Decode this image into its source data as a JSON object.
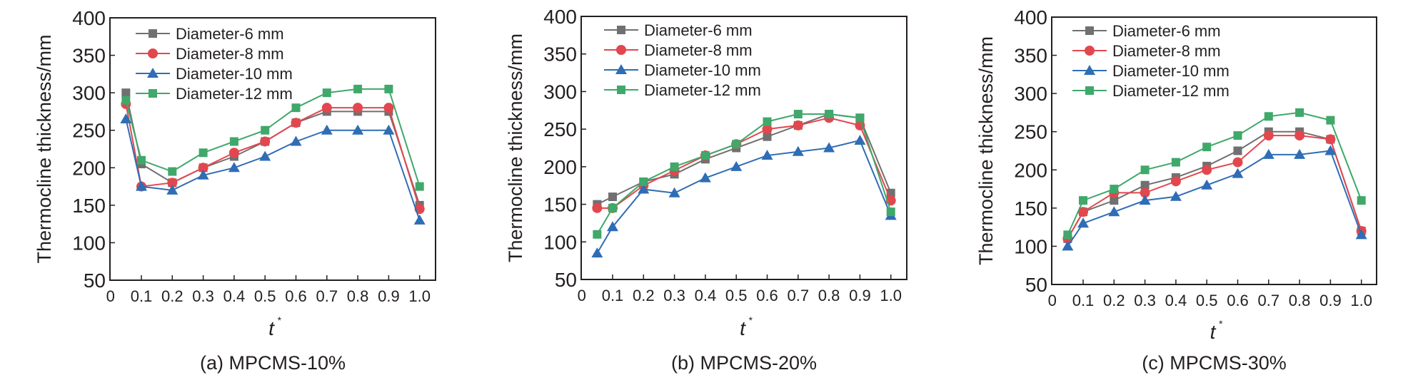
{
  "figure": {
    "panels_count": 3
  },
  "chart_data": [
    {
      "type": "line",
      "caption": "(a) MPCMS-10%",
      "xlabel": "t",
      "xlabel_superscript": "*",
      "ylabel": "Thermocline thickness/mm",
      "xlim": [
        0,
        1.05
      ],
      "ylim": [
        50,
        400
      ],
      "xticks": [
        0,
        0.1,
        0.2,
        0.3,
        0.4,
        0.5,
        0.6,
        0.7,
        0.8,
        0.9,
        1.0
      ],
      "xtick_labels": [
        "0",
        "0.1",
        "0.2",
        "0.3",
        "0.4",
        "0.5",
        "0.6",
        "0.7",
        "0.8",
        "0.9",
        "1.0"
      ],
      "yticks": [
        50,
        100,
        150,
        200,
        250,
        300,
        350,
        400
      ],
      "ytick_labels": [
        "50",
        "100",
        "150",
        "200",
        "250",
        "300",
        "350",
        "400"
      ],
      "grid": false,
      "legend_position": "top-left",
      "x": [
        0.05,
        0.1,
        0.2,
        0.3,
        0.4,
        0.5,
        0.6,
        0.7,
        0.8,
        0.9,
        1.0
      ],
      "series": [
        {
          "name": "Diameter-6 mm",
          "marker": "square",
          "color": "#707070",
          "values": [
            300,
            205,
            180,
            200,
            215,
            235,
            260,
            275,
            275,
            275,
            150
          ]
        },
        {
          "name": "Diameter-8 mm",
          "marker": "circle",
          "color": "#e2474e",
          "values": [
            285,
            175,
            180,
            200,
            220,
            235,
            260,
            280,
            280,
            280,
            145
          ]
        },
        {
          "name": "Diameter-10 mm",
          "marker": "triangle",
          "color": "#2f6db5",
          "values": [
            265,
            175,
            170,
            190,
            200,
            215,
            235,
            250,
            250,
            250,
            130
          ]
        },
        {
          "name": "Diameter-12 mm",
          "marker": "square",
          "color": "#3fa86a",
          "values": [
            290,
            210,
            195,
            220,
            235,
            250,
            280,
            300,
            305,
            305,
            175
          ]
        }
      ]
    },
    {
      "type": "line",
      "caption": "(b) MPCMS-20%",
      "xlabel": "t",
      "xlabel_superscript": "*",
      "ylabel": "Thermocline thickness/mm",
      "xlim": [
        0,
        1.05
      ],
      "ylim": [
        50,
        400
      ],
      "xticks": [
        0,
        0.1,
        0.2,
        0.3,
        0.4,
        0.5,
        0.6,
        0.7,
        0.8,
        0.9,
        1.0
      ],
      "xtick_labels": [
        "0",
        "0.1",
        "0.2",
        "0.3",
        "0.4",
        "0.5",
        "0.6",
        "0.7",
        "0.8",
        "0.9",
        "1.0"
      ],
      "yticks": [
        50,
        100,
        150,
        200,
        250,
        300,
        350,
        400
      ],
      "ytick_labels": [
        "50",
        "100",
        "150",
        "200",
        "250",
        "300",
        "350",
        "400"
      ],
      "grid": false,
      "legend_position": "top-left",
      "x": [
        0.05,
        0.1,
        0.2,
        0.3,
        0.4,
        0.5,
        0.6,
        0.7,
        0.8,
        0.9,
        1.0
      ],
      "series": [
        {
          "name": "Diameter-6 mm",
          "marker": "square",
          "color": "#707070",
          "values": [
            150,
            160,
            180,
            190,
            210,
            225,
            240,
            255,
            270,
            265,
            165
          ]
        },
        {
          "name": "Diameter-8 mm",
          "marker": "circle",
          "color": "#e2474e",
          "values": [
            145,
            145,
            175,
            195,
            215,
            230,
            250,
            255,
            265,
            255,
            155
          ]
        },
        {
          "name": "Diameter-10 mm",
          "marker": "triangle",
          "color": "#2f6db5",
          "values": [
            85,
            120,
            170,
            165,
            185,
            200,
            215,
            220,
            225,
            235,
            135
          ]
        },
        {
          "name": "Diameter-12 mm",
          "marker": "square",
          "color": "#3fa86a",
          "values": [
            110,
            145,
            180,
            200,
            215,
            230,
            260,
            270,
            270,
            265,
            140
          ]
        }
      ]
    },
    {
      "type": "line",
      "caption": "(c) MPCMS-30%",
      "xlabel": "t",
      "xlabel_superscript": "*",
      "ylabel": "Thermocline thickness/mm",
      "xlim": [
        0,
        1.05
      ],
      "ylim": [
        50,
        400
      ],
      "xticks": [
        0,
        0.1,
        0.2,
        0.3,
        0.4,
        0.5,
        0.6,
        0.7,
        0.8,
        0.9,
        1.0
      ],
      "xtick_labels": [
        "0",
        "0.1",
        "0.2",
        "0.3",
        "0.4",
        "0.5",
        "0.6",
        "0.7",
        "0.8",
        "0.9",
        "1.0"
      ],
      "yticks": [
        50,
        100,
        150,
        200,
        250,
        300,
        350,
        400
      ],
      "ytick_labels": [
        "50",
        "100",
        "150",
        "200",
        "250",
        "300",
        "350",
        "400"
      ],
      "grid": false,
      "legend_position": "top-left",
      "x": [
        0.05,
        0.1,
        0.2,
        0.3,
        0.4,
        0.5,
        0.6,
        0.7,
        0.8,
        0.9,
        1.0
      ],
      "series": [
        {
          "name": "Diameter-6 mm",
          "marker": "square",
          "color": "#707070",
          "values": [
            110,
            145,
            160,
            180,
            190,
            205,
            225,
            250,
            250,
            240,
            120
          ]
        },
        {
          "name": "Diameter-8 mm",
          "marker": "circle",
          "color": "#e2474e",
          "values": [
            110,
            145,
            170,
            170,
            185,
            200,
            210,
            245,
            245,
            240,
            120
          ]
        },
        {
          "name": "Diameter-10 mm",
          "marker": "triangle",
          "color": "#2f6db5",
          "values": [
            100,
            130,
            145,
            160,
            165,
            180,
            195,
            220,
            220,
            225,
            115
          ]
        },
        {
          "name": "Diameter-12 mm",
          "marker": "square",
          "color": "#3fa86a",
          "values": [
            115,
            160,
            175,
            200,
            210,
            230,
            245,
            270,
            275,
            265,
            160
          ]
        }
      ]
    }
  ]
}
